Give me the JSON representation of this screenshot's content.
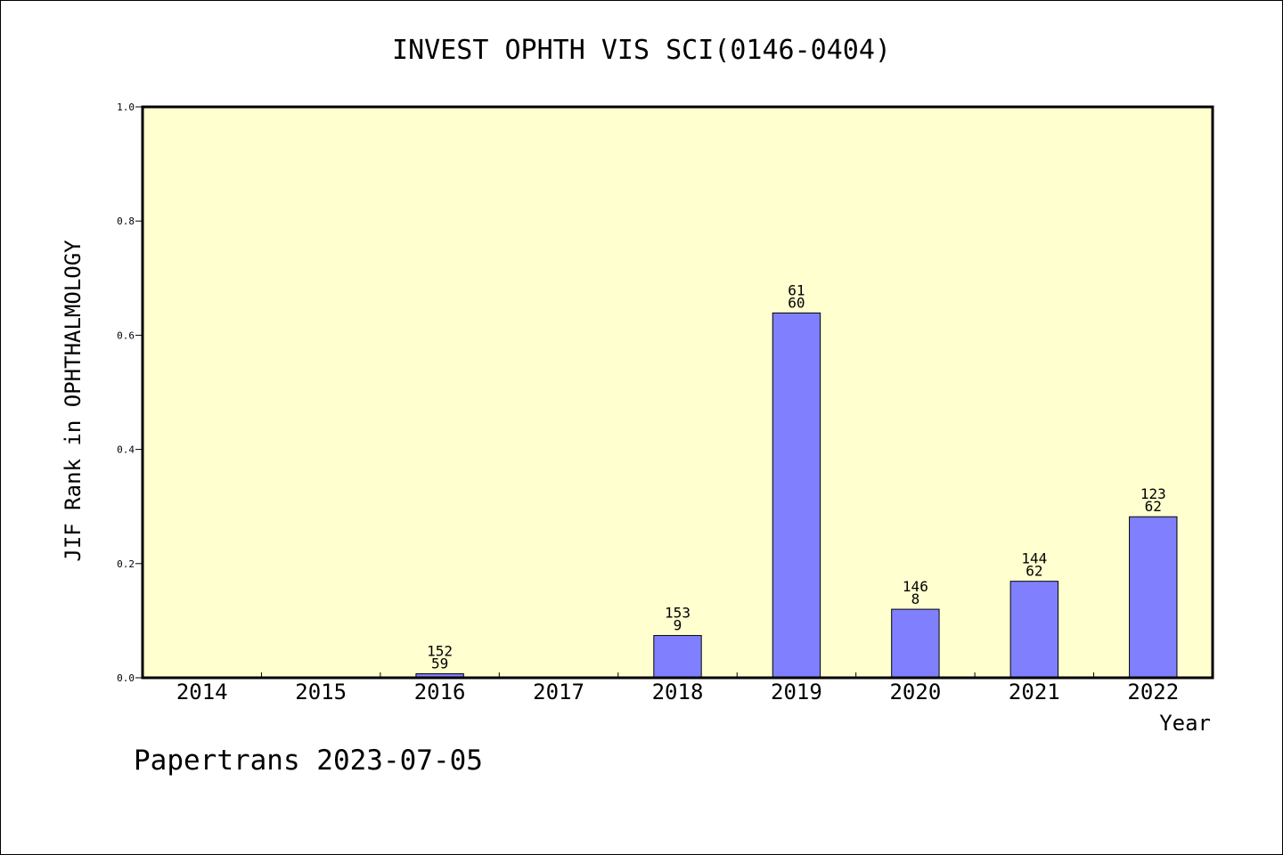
{
  "chart_data": {
    "type": "bar",
    "title": "INVEST OPHTH VIS SCI(0146-0404)",
    "xlabel": "Year",
    "ylabel": "JIF Rank in OPHTHALMOLOGY",
    "categories": [
      "2014",
      "2015",
      "2016",
      "2017",
      "2018",
      "2019",
      "2020",
      "2021",
      "2022"
    ],
    "values": [
      null,
      null,
      0.007,
      null,
      0.074,
      0.639,
      0.12,
      0.169,
      0.282
    ],
    "bar_labels": [
      null,
      null,
      [
        "152",
        "59"
      ],
      null,
      [
        "153",
        "9"
      ],
      [
        "61",
        "60"
      ],
      [
        "146",
        "8"
      ],
      [
        "144",
        "62"
      ],
      [
        "123",
        "62"
      ]
    ],
    "ylim": [
      0,
      1.0
    ],
    "yticks": [
      "0.0",
      "0.2",
      "0.4",
      "0.6",
      "0.8",
      "1.0"
    ],
    "grid": false,
    "colors": {
      "bar": "#8080ff",
      "plot_background": "#ffffd0",
      "axes": "#000000"
    }
  },
  "footer": "Papertrans 2023-07-05"
}
